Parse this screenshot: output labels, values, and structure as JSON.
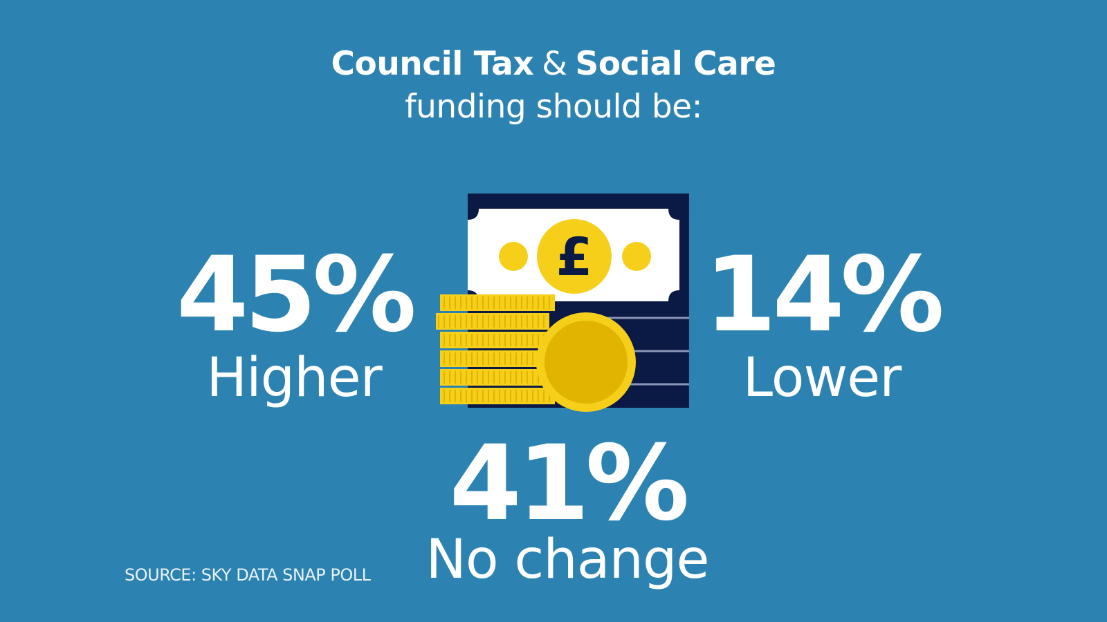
{
  "title": {
    "line1_part1": "Council Tax",
    "line1_amp": "&",
    "line1_part2": "Social Care",
    "line2": "funding should be:"
  },
  "chart_data": {
    "type": "table",
    "categories": [
      "Higher",
      "Lower",
      "No change"
    ],
    "values": [
      45,
      14,
      41
    ],
    "value_labels": [
      "45%",
      "14%",
      "41%"
    ]
  },
  "stats": {
    "higher": {
      "pct": "45%",
      "label": "Higher"
    },
    "lower": {
      "pct": "14%",
      "label": "Lower"
    },
    "nochange": {
      "pct": "41%",
      "label": "No change"
    }
  },
  "source": "SOURCE: SKY DATA SNAP POLL",
  "graphic": {
    "icons": [
      "banknote-icon",
      "pound-sign-icon",
      "coin-stack-icon",
      "coin-icon"
    ],
    "symbol": "£"
  },
  "colors": {
    "background": "#2c82b1",
    "text": "#ffffff",
    "navy": "#0b1a45",
    "gold": "#f5cf1a",
    "gold_dark": "#e0b400"
  }
}
